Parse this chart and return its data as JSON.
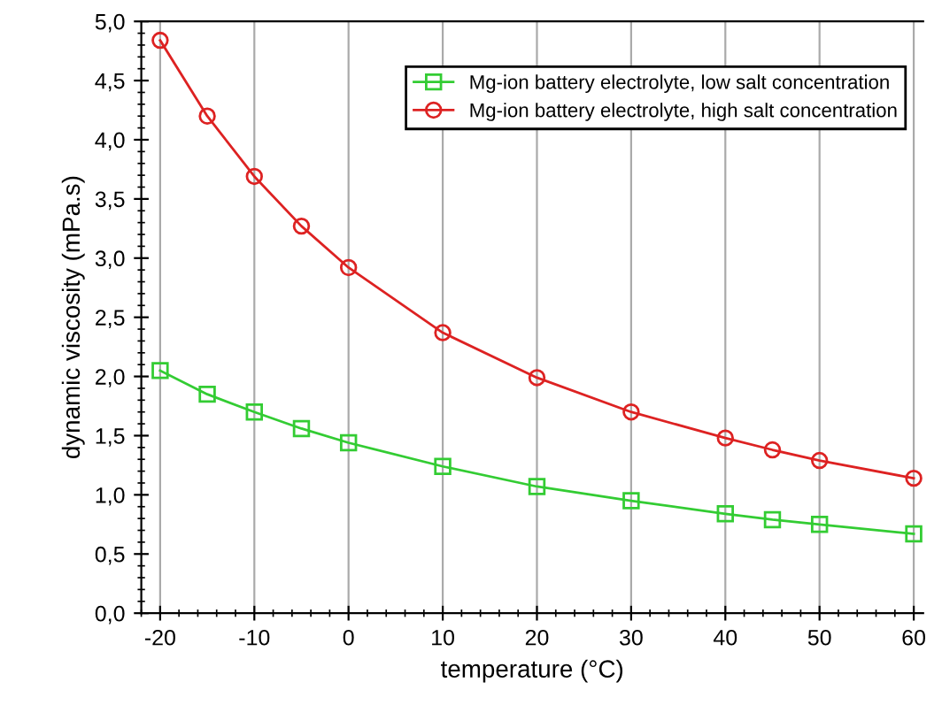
{
  "chart_data": {
    "type": "line",
    "xlabel": "temperature (°C)",
    "ylabel": "dynamic viscosity (mPa.s)",
    "x": [
      -20,
      -15,
      -10,
      -5,
      0,
      10,
      20,
      30,
      40,
      45,
      50,
      60
    ],
    "series": [
      {
        "name": "Mg-ion battery electrolyte, low salt concentration",
        "color": "#33cc33",
        "marker": "square",
        "values": [
          2.05,
          1.85,
          1.7,
          1.56,
          1.44,
          1.24,
          1.07,
          0.95,
          0.84,
          0.79,
          0.75,
          0.67
        ]
      },
      {
        "name": "Mg-ion battery electrolyte, high salt concentration",
        "color": "#dd2222",
        "marker": "circle",
        "values": [
          4.84,
          4.2,
          3.69,
          3.27,
          2.92,
          2.37,
          1.99,
          1.7,
          1.48,
          1.38,
          1.29,
          1.14
        ]
      }
    ],
    "xlim": [
      -22,
      61
    ],
    "ylim": [
      0,
      5
    ],
    "xticks": [
      -20,
      -10,
      0,
      10,
      20,
      30,
      40,
      50,
      60
    ],
    "yticks": [
      {
        "value": 0,
        "label": "0,0"
      },
      {
        "value": 0.5,
        "label": "0,5"
      },
      {
        "value": 1,
        "label": "1,0"
      },
      {
        "value": 1.5,
        "label": "1,5"
      },
      {
        "value": 2,
        "label": "2,0"
      },
      {
        "value": 2.5,
        "label": "2,5"
      },
      {
        "value": 3,
        "label": "3,0"
      },
      {
        "value": 3.5,
        "label": "3,5"
      },
      {
        "value": 4,
        "label": "4,0"
      },
      {
        "value": 4.5,
        "label": "4,5"
      },
      {
        "value": 5,
        "label": "5,0"
      }
    ],
    "grid": "x",
    "legend": "top right",
    "line_style": "solid"
  }
}
